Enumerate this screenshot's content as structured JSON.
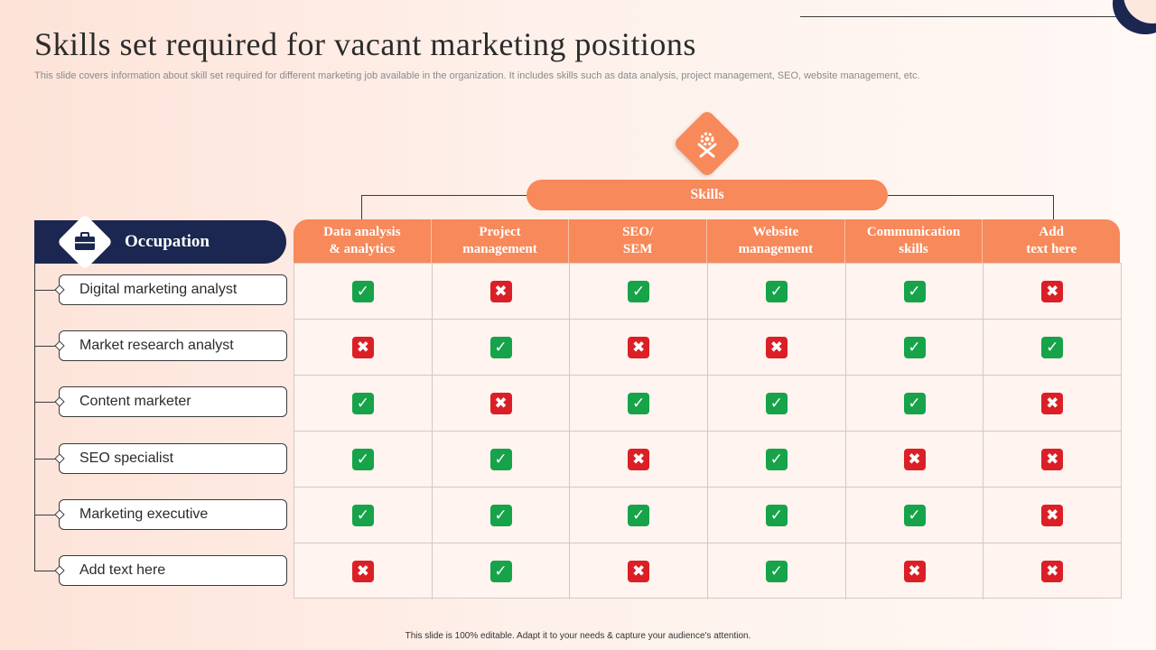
{
  "title": "Skills set required for vacant marketing positions",
  "subtitle": "This slide covers information about skill set required for different marketing job available in the organization. It includes skills such as data analysis, project management, SEO, website management, etc.",
  "skills_label": "Skills",
  "occupation_label": "Occupation",
  "skills": [
    [
      "Data analysis",
      "& analytics"
    ],
    [
      "Project",
      "management"
    ],
    [
      "SEO/",
      "SEM"
    ],
    [
      "Website",
      "management"
    ],
    [
      "Communication",
      "skills"
    ],
    [
      "Add",
      "text here"
    ]
  ],
  "occupations": [
    "Digital marketing analyst",
    "Market research analyst",
    "Content marketer",
    "SEO specialist",
    "Marketing executive",
    "Add text here"
  ],
  "matrix": [
    [
      true,
      false,
      true,
      true,
      true,
      false
    ],
    [
      false,
      true,
      false,
      false,
      true,
      true
    ],
    [
      true,
      false,
      true,
      true,
      true,
      false
    ],
    [
      true,
      true,
      false,
      true,
      false,
      false
    ],
    [
      true,
      true,
      true,
      true,
      true,
      false
    ],
    [
      false,
      true,
      false,
      true,
      false,
      false
    ]
  ],
  "icons": {
    "skills": "tools-gear-icon",
    "occupation": "briefcase-icon",
    "yes": "check-icon",
    "no": "cross-icon"
  },
  "colors": {
    "accent": "#f7895a",
    "navy": "#1b2750",
    "yes": "#16a34a",
    "no": "#dc1f26"
  },
  "footer": "This slide is 100% editable. Adapt it to your needs & capture your audience's attention."
}
